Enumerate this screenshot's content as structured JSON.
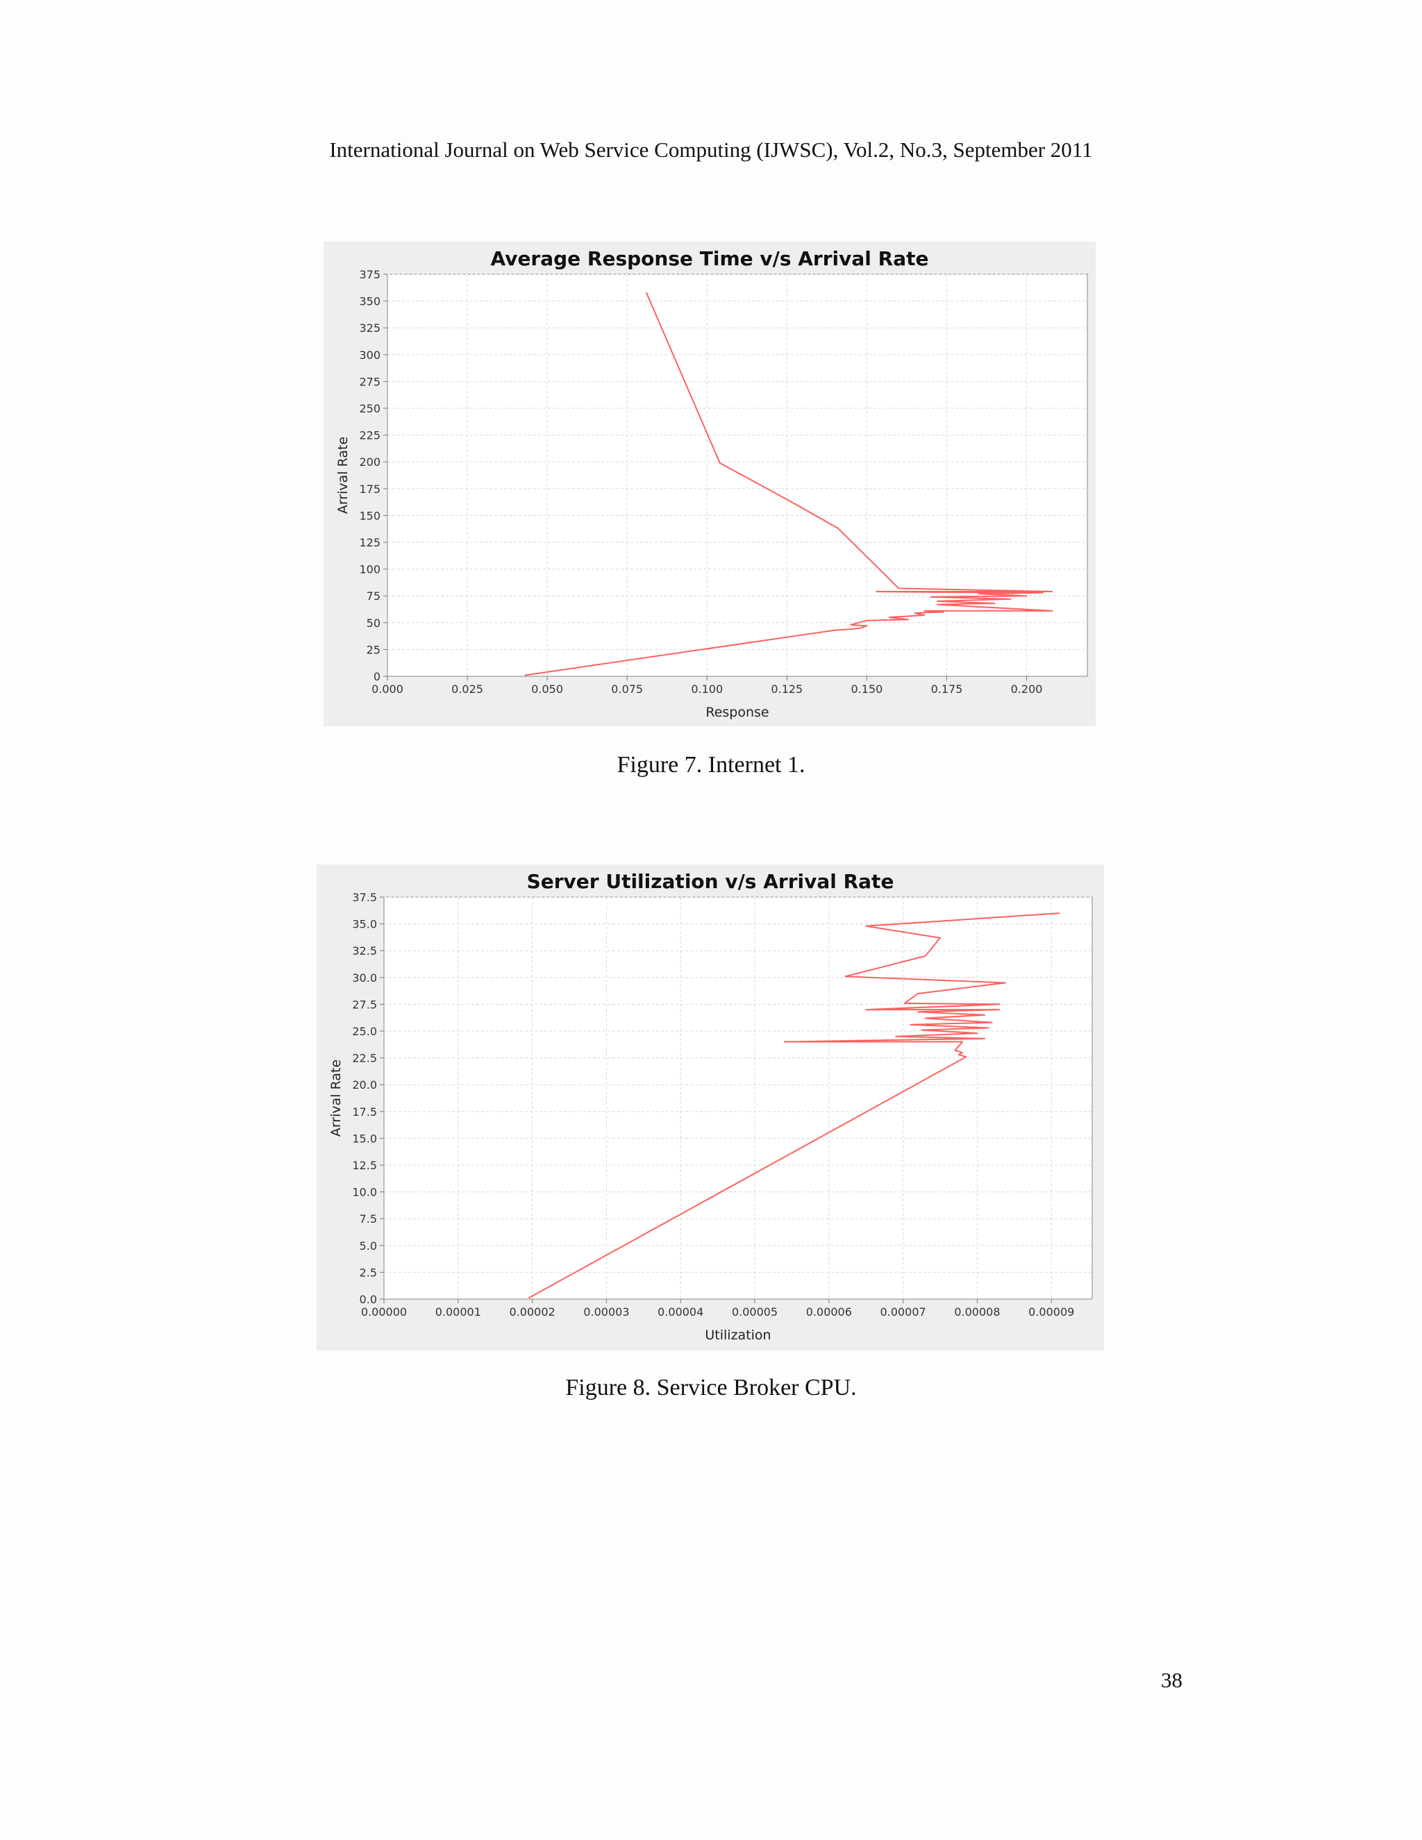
{
  "header": {
    "journal_line": "International Journal on Web Service Computing (IJWSC), Vol.2, No.3, September 2011"
  },
  "figures": [
    {
      "caption": "Figure 7. Internet 1."
    },
    {
      "caption": "Figure 8. Service Broker CPU."
    }
  ],
  "page_number": "38",
  "colors": {
    "series": "#ff6060",
    "plot_background": "#ffffff",
    "frame_background": "#eeeeee",
    "grid": "#d8d8d8"
  },
  "chart_data": [
    {
      "type": "line",
      "title": "Average Response Time v/s Arrival Rate",
      "xlabel": "Response",
      "ylabel": "Arrival Rate",
      "xlim": [
        0.0,
        0.219
      ],
      "ylim": [
        0,
        375
      ],
      "x_ticks": [
        "0.000",
        "0.025",
        "0.050",
        "0.075",
        "0.100",
        "0.125",
        "0.150",
        "0.175",
        "0.200"
      ],
      "x_tick_values": [
        0,
        0.025,
        0.05,
        0.075,
        0.1,
        0.125,
        0.15,
        0.175,
        0.2
      ],
      "y_ticks": [
        "0",
        "25",
        "50",
        "75",
        "100",
        "125",
        "150",
        "175",
        "200",
        "225",
        "250",
        "275",
        "300",
        "325",
        "350",
        "375"
      ],
      "y_tick_values": [
        0,
        25,
        50,
        75,
        100,
        125,
        150,
        175,
        200,
        225,
        250,
        275,
        300,
        325,
        350,
        375
      ],
      "grid": true,
      "legend": "none",
      "series": [
        {
          "x": [
            0.081,
            0.104,
            0.125,
            0.141,
            0.16,
            0.208,
            0.153,
            0.19,
            0.205,
            0.185,
            0.2,
            0.17,
            0.195,
            0.172,
            0.19,
            0.172,
            0.208,
            0.168,
            0.174,
            0.165,
            0.168,
            0.157,
            0.163,
            0.15,
            0.145,
            0.15,
            0.148,
            0.145,
            0.14,
            0.043
          ],
          "y": [
            358,
            199,
            165,
            138,
            82,
            79,
            79,
            78,
            78,
            77,
            75,
            74,
            72,
            70,
            68,
            67,
            61,
            61,
            60,
            59,
            57,
            55,
            53,
            52,
            48,
            47,
            45,
            44,
            43,
            1
          ]
        }
      ]
    },
    {
      "type": "line",
      "title": "Server Utilization v/s Arrival Rate",
      "xlabel": "Utilization",
      "ylabel": "Arrival Rate",
      "xlim": [
        0.0,
        9.55e-05
      ],
      "ylim": [
        0.0,
        37.5
      ],
      "x_ticks": [
        "0.00000",
        "0.00001",
        "0.00002",
        "0.00003",
        "0.00004",
        "0.00005",
        "0.00006",
        "0.00007",
        "0.00008",
        "0.00009"
      ],
      "x_tick_values": [
        0,
        1e-05,
        2e-05,
        3e-05,
        4e-05,
        5e-05,
        6e-05,
        7e-05,
        8e-05,
        9e-05
      ],
      "y_ticks": [
        "0.0",
        "2.5",
        "5.0",
        "7.5",
        "10.0",
        "12.5",
        "15.0",
        "17.5",
        "20.0",
        "22.5",
        "25.0",
        "27.5",
        "30.0",
        "32.5",
        "35.0",
        "37.5"
      ],
      "y_tick_values": [
        0,
        2.5,
        5,
        7.5,
        10,
        12.5,
        15,
        17.5,
        20,
        22.5,
        25,
        27.5,
        30,
        32.5,
        35,
        37.5
      ],
      "grid": true,
      "legend": "none",
      "series": [
        {
          "x": [
            9.11e-05,
            6.5e-05,
            7.5e-05,
            7.3e-05,
            6.22e-05,
            8.38e-05,
            7.2e-05,
            7.02e-05,
            8.3e-05,
            6.5e-05,
            8.3e-05,
            7.2e-05,
            8.1e-05,
            7.3e-05,
            8.2e-05,
            7.1e-05,
            8.15e-05,
            7.25e-05,
            8e-05,
            6.9e-05,
            8.1e-05,
            5.4e-05,
            7.8e-05,
            7.7e-05,
            7.8e-05,
            7.75e-05,
            7.85e-05,
            1.95e-05
          ],
          "y": [
            36.0,
            34.8,
            33.7,
            32.0,
            30.1,
            29.5,
            28.5,
            27.6,
            27.5,
            27.0,
            27.0,
            26.8,
            26.5,
            26.2,
            25.8,
            25.6,
            25.3,
            25.1,
            24.8,
            24.5,
            24.3,
            24.0,
            24.0,
            23.2,
            23.0,
            22.8,
            22.6,
            0.1
          ]
        }
      ]
    }
  ]
}
